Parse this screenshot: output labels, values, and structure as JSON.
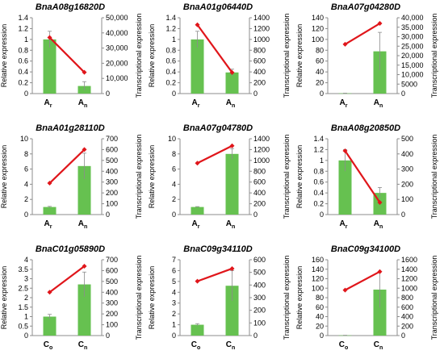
{
  "colors": {
    "bar": "#66c150",
    "line": "#e0161b",
    "axis": "#8c8c8c",
    "error": "#8c8c8c"
  },
  "axis_labels": {
    "left": "Relative expression",
    "right": "Transcriptional expression"
  },
  "chart_data": [
    {
      "type": "bar+line",
      "title": "BnaA08g16820D",
      "categories": [
        {
          "base": "A",
          "sub": "r"
        },
        {
          "base": "A",
          "sub": "n"
        }
      ],
      "series": [
        {
          "axis": "left",
          "type": "bar",
          "values": [
            1.0,
            0.14
          ],
          "errors": [
            0.15,
            0.08
          ]
        },
        {
          "axis": "right",
          "type": "line",
          "values": [
            37000,
            14000
          ]
        }
      ],
      "ylim_left": [
        0,
        1.4
      ],
      "yticks_left": [
        "0",
        "0.2",
        "0.4",
        "0.6",
        "0.8",
        "1",
        "1.2",
        "1.4"
      ],
      "ylim_right": [
        0,
        50000
      ],
      "yticks_right": [
        "0",
        "10,000",
        "20,000",
        "30,000",
        "40,000",
        "50,000"
      ]
    },
    {
      "type": "bar+line",
      "title": "BnaA01g06440D",
      "categories": [
        {
          "base": "A",
          "sub": "r"
        },
        {
          "base": "A",
          "sub": "n"
        }
      ],
      "series": [
        {
          "axis": "left",
          "type": "bar",
          "values": [
            1.0,
            0.39
          ],
          "errors": [
            0.15,
            0.06
          ]
        },
        {
          "axis": "right",
          "type": "line",
          "values": [
            1270,
            390
          ]
        }
      ],
      "ylim_left": [
        0,
        1.4
      ],
      "yticks_left": [
        "0",
        "0.2",
        "0.4",
        "0.6",
        "0.8",
        "1",
        "1.2",
        "1.4"
      ],
      "ylim_right": [
        0,
        1400
      ],
      "yticks_right": [
        "0",
        "200",
        "400",
        "600",
        "800",
        "1000",
        "1200",
        "1400"
      ]
    },
    {
      "type": "bar+line",
      "title": "BnaA07g04280D",
      "categories": [
        {
          "base": "A",
          "sub": "r"
        },
        {
          "base": "A",
          "sub": "n"
        }
      ],
      "series": [
        {
          "axis": "left",
          "type": "bar",
          "values": [
            0.5,
            78
          ],
          "errors": [
            0.2,
            35
          ]
        },
        {
          "axis": "right",
          "type": "line",
          "values": [
            26000,
            37000
          ]
        }
      ],
      "ylim_left": [
        0,
        140
      ],
      "yticks_left": [
        "0",
        "20",
        "40",
        "60",
        "80",
        "100",
        "120",
        "140"
      ],
      "ylim_right": [
        0,
        40000
      ],
      "yticks_right": [
        "0",
        "5000",
        "10,000",
        "15,000",
        "20,000",
        "25,000",
        "30,000",
        "35,000",
        "40,000"
      ]
    },
    {
      "type": "bar+line",
      "title": "BnaA01g28110D",
      "categories": [
        {
          "base": "A",
          "sub": "r"
        },
        {
          "base": "A",
          "sub": "n"
        }
      ],
      "series": [
        {
          "axis": "left",
          "type": "bar",
          "values": [
            1.0,
            6.4
          ],
          "errors": [
            0.08,
            1.7
          ]
        },
        {
          "axis": "right",
          "type": "line",
          "values": [
            290,
            600
          ]
        }
      ],
      "ylim_left": [
        0,
        10
      ],
      "yticks_left": [
        "0",
        "2",
        "4",
        "6",
        "8",
        "10"
      ],
      "ylim_right": [
        0,
        700
      ],
      "yticks_right": [
        "0",
        "100",
        "200",
        "300",
        "400",
        "500",
        "600",
        "700"
      ]
    },
    {
      "type": "bar+line",
      "title": "BnaA07g04780D",
      "categories": [
        {
          "base": "A",
          "sub": "r"
        },
        {
          "base": "A",
          "sub": "n"
        }
      ],
      "series": [
        {
          "axis": "left",
          "type": "bar",
          "values": [
            1.0,
            8.0
          ],
          "errors": [
            0.05,
            0.7
          ]
        },
        {
          "axis": "right",
          "type": "line",
          "values": [
            950,
            1270
          ]
        }
      ],
      "ylim_left": [
        0,
        10
      ],
      "yticks_left": [
        "0",
        "2",
        "4",
        "6",
        "8",
        "10"
      ],
      "ylim_right": [
        0,
        1400
      ],
      "yticks_right": [
        "0",
        "200",
        "400",
        "600",
        "800",
        "1000",
        "1200",
        "1400"
      ]
    },
    {
      "type": "bar+line",
      "title": "BnaA08g20850D",
      "categories": [
        {
          "base": "A",
          "sub": "r"
        },
        {
          "base": "A",
          "sub": "n"
        }
      ],
      "series": [
        {
          "axis": "left",
          "type": "bar",
          "values": [
            1.0,
            0.4
          ],
          "errors": [
            0.2,
            0.1
          ]
        },
        {
          "axis": "right",
          "type": "line",
          "values": [
            420,
            80
          ]
        }
      ],
      "ylim_left": [
        0,
        1.4
      ],
      "yticks_left": [
        "0",
        "0.2",
        "0.4",
        "0.6",
        "0.8",
        "1",
        "1.2",
        "1.4"
      ],
      "ylim_right": [
        0,
        500
      ],
      "yticks_right": [
        "0",
        "100",
        "200",
        "300",
        "400",
        "500"
      ]
    },
    {
      "type": "bar+line",
      "title": "BnaC01g05890D",
      "categories": [
        {
          "base": "C",
          "sub": "o"
        },
        {
          "base": "C",
          "sub": "n"
        }
      ],
      "series": [
        {
          "axis": "left",
          "type": "bar",
          "values": [
            1.0,
            2.7
          ],
          "errors": [
            0.12,
            0.65
          ]
        },
        {
          "axis": "right",
          "type": "line",
          "values": [
            400,
            640
          ]
        }
      ],
      "ylim_left": [
        0,
        4
      ],
      "yticks_left": [
        "0",
        "0.5",
        "1",
        "1.5",
        "2",
        "2.5",
        "3",
        "3.5",
        "4"
      ],
      "ylim_right": [
        0,
        700
      ],
      "yticks_right": [
        "0",
        "100",
        "200",
        "300",
        "400",
        "500",
        "600",
        "700"
      ]
    },
    {
      "type": "bar+line",
      "title": "BnaC09g34110D",
      "categories": [
        {
          "base": "C",
          "sub": "o"
        },
        {
          "base": "C",
          "sub": "n"
        }
      ],
      "series": [
        {
          "axis": "left",
          "type": "bar",
          "values": [
            1.0,
            4.6
          ],
          "errors": [
            0.1,
            1.4
          ]
        },
        {
          "axis": "right",
          "type": "line",
          "values": [
            430,
            530
          ]
        }
      ],
      "ylim_left": [
        0,
        7
      ],
      "yticks_left": [
        "0",
        "1",
        "2",
        "3",
        "4",
        "5",
        "6",
        "7"
      ],
      "ylim_right": [
        0,
        600
      ],
      "yticks_right": [
        "0",
        "100",
        "200",
        "300",
        "400",
        "500",
        "600"
      ]
    },
    {
      "type": "bar+line",
      "title": "BnaC09g34100D",
      "categories": [
        {
          "base": "C",
          "sub": "o"
        },
        {
          "base": "C",
          "sub": "n"
        }
      ],
      "series": [
        {
          "axis": "left",
          "type": "bar",
          "values": [
            0.5,
            97
          ],
          "errors": [
            0.2,
            38
          ]
        },
        {
          "axis": "right",
          "type": "line",
          "values": [
            960,
            1350
          ]
        }
      ],
      "ylim_left": [
        0,
        160
      ],
      "yticks_left": [
        "0",
        "20",
        "40",
        "60",
        "80",
        "100",
        "120",
        "140",
        "160"
      ],
      "ylim_right": [
        0,
        1600
      ],
      "yticks_right": [
        "0",
        "200",
        "400",
        "600",
        "800",
        "1000",
        "1200",
        "1400",
        "1600"
      ]
    }
  ]
}
